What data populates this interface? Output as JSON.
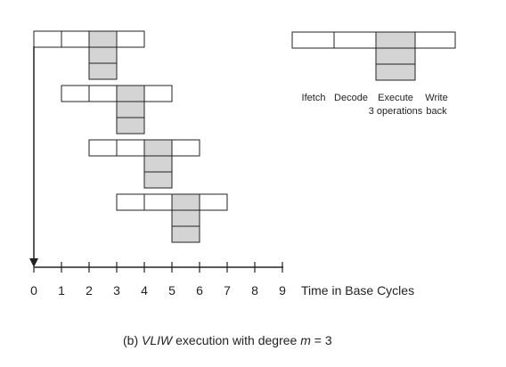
{
  "diagram": {
    "tick_labels": [
      "0",
      "1",
      "2",
      "3",
      "4",
      "5",
      "6",
      "7",
      "8",
      "9"
    ],
    "axis_title": "Time in Base Cycles",
    "legend": {
      "fetch": "Ifetch",
      "decode": "Decode",
      "execute_line1": "Execute",
      "execute_line2": "3 operations",
      "write_line1": "Write",
      "write_line2": "back"
    },
    "caption": {
      "prefix": "(b) ",
      "vliw": "VLIW",
      "middle": " execution with degree ",
      "m": "m",
      "suffix": " = 3"
    },
    "instruction_groups": [
      {
        "start_cycle": 0,
        "stages": [
          "Ifetch",
          "Decode",
          "Execute",
          "Write back"
        ],
        "execute_operations": 3
      },
      {
        "start_cycle": 1,
        "stages": [
          "Ifetch",
          "Decode",
          "Execute",
          "Write back"
        ],
        "execute_operations": 3
      },
      {
        "start_cycle": 2,
        "stages": [
          "Ifetch",
          "Decode",
          "Execute",
          "Write back"
        ],
        "execute_operations": 3
      },
      {
        "start_cycle": 3,
        "stages": [
          "Ifetch",
          "Decode",
          "Execute",
          "Write back"
        ],
        "execute_operations": 3
      }
    ],
    "colors": {
      "execute_fill": "#d4d4d4",
      "line": "#222222",
      "background": "#ffffff"
    }
  }
}
